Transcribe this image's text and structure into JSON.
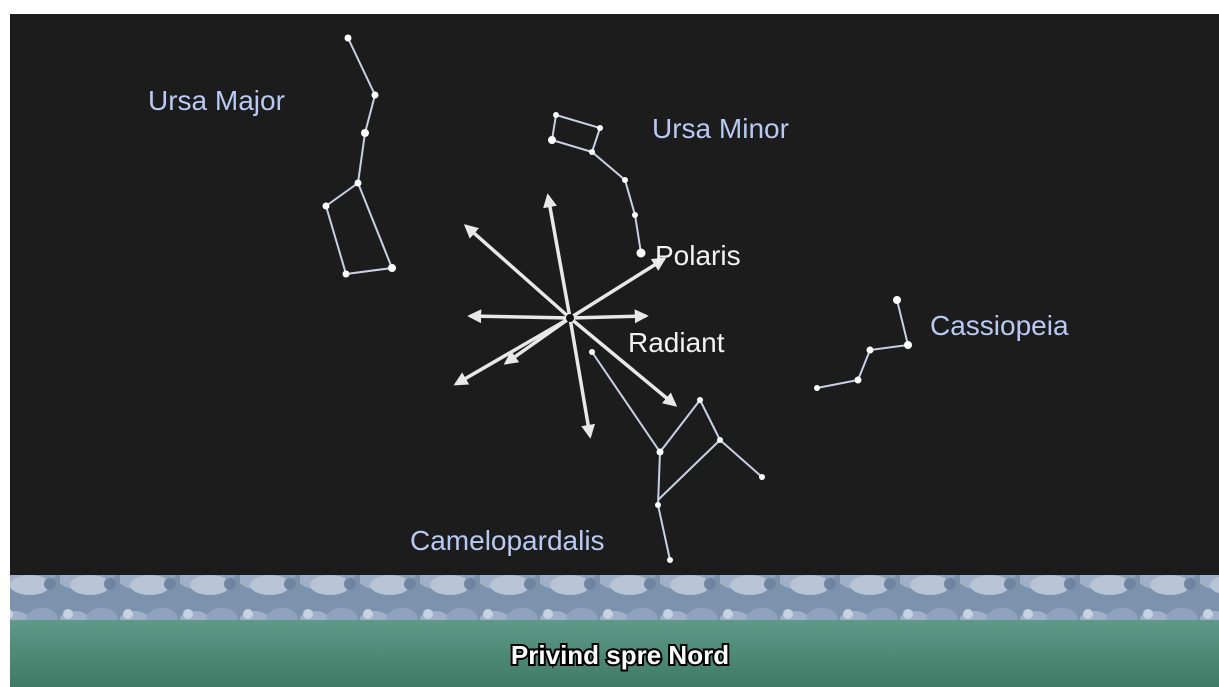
{
  "labels": {
    "ursa_major": "Ursa Major",
    "ursa_minor": "Ursa Minor",
    "polaris": "Polaris",
    "radiant": "Radiant",
    "cassiopeia": "Cassiopeia",
    "camelopardalis": "Camelopardalis"
  },
  "caption": "Privind spre Nord"
}
